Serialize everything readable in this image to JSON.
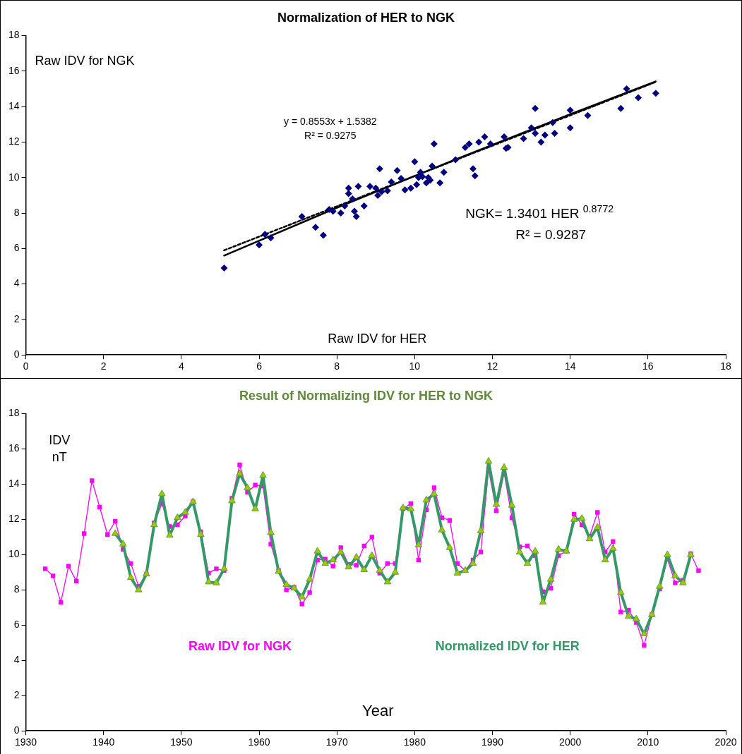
{
  "chart_data": [
    {
      "type": "scatter",
      "title": "Normalization of HER to NGK",
      "xlabel": "Raw IDV for HER",
      "ylabel": "Raw IDV for NGK",
      "xlim": [
        0,
        18
      ],
      "ylim": [
        0,
        18
      ],
      "xticks": [
        0,
        2,
        4,
        6,
        8,
        10,
        12,
        14,
        16,
        18
      ],
      "yticks": [
        0,
        2,
        4,
        6,
        8,
        10,
        12,
        14,
        16,
        18
      ],
      "grid": false,
      "legend": false,
      "marker": "diamond",
      "annotations": [
        "y = 0.8553x + 1.5382",
        "R² = 0.9275",
        "NGK= 1.3401 HER $^{0.8772}$",
        "R² = 0.9287"
      ],
      "series": [
        {
          "color": "#000080",
          "x": [
            5.1,
            6.0,
            6.15,
            6.3,
            7.1,
            7.45,
            7.65,
            7.8,
            7.9,
            8.1,
            8.2,
            8.3,
            8.3,
            8.4,
            8.45,
            8.5,
            8.55,
            8.7,
            8.85,
            9.0,
            9.05,
            9.1,
            9.15,
            9.3,
            9.4,
            9.55,
            9.65,
            9.75,
            9.9,
            10.0,
            10.05,
            10.1,
            10.15,
            10.2,
            10.3,
            10.35,
            10.4,
            10.5,
            10.45,
            10.65,
            10.75,
            11.05,
            11.3,
            11.4,
            11.5,
            11.55,
            11.65,
            11.8,
            11.95,
            12.3,
            12.35,
            12.4,
            12.8,
            13.0,
            13.1,
            13.1,
            13.25,
            13.35,
            13.55,
            13.6,
            14.0,
            14.0,
            14.45,
            15.3,
            15.45,
            15.75,
            16.2
          ],
          "values": [
            4.9,
            6.2,
            6.8,
            6.6,
            7.8,
            7.2,
            6.75,
            8.2,
            8.1,
            8.0,
            8.4,
            9.4,
            9.1,
            8.8,
            8.1,
            7.8,
            9.5,
            8.4,
            9.5,
            9.4,
            9.0,
            10.5,
            9.2,
            9.25,
            9.75,
            10.4,
            9.95,
            9.3,
            9.4,
            10.9,
            9.6,
            10.0,
            10.3,
            10.05,
            9.7,
            10.0,
            9.85,
            11.9,
            10.65,
            9.7,
            10.3,
            11.0,
            11.7,
            11.9,
            10.5,
            10.1,
            12.0,
            12.3,
            11.9,
            12.3,
            11.65,
            11.7,
            12.2,
            12.8,
            13.9,
            12.5,
            12.0,
            12.4,
            13.1,
            12.5,
            13.8,
            12.8,
            13.5,
            13.9,
            15.0,
            14.5,
            14.75
          ]
        },
        {
          "type": "line",
          "color": "#000000",
          "marker": "none",
          "line_style": "dashed",
          "x": [
            5.1,
            16.2
          ],
          "values": [
            5.9,
            15.39
          ]
        },
        {
          "type": "line",
          "color": "#000000",
          "marker": "none",
          "line_style": "solid",
          "x": [
            5.1,
            8,
            11,
            14,
            16.2
          ],
          "values": [
            5.6,
            8.3,
            10.98,
            13.57,
            15.42
          ]
        }
      ]
    },
    {
      "type": "line",
      "title": "Result of Normalizing IDV for HER to NGK",
      "xlabel": "Year",
      "ylabel": "IDV\nnT",
      "xlim": [
        1930,
        2020
      ],
      "ylim": [
        0,
        18
      ],
      "xticks": [
        1930,
        1940,
        1950,
        1960,
        1970,
        1980,
        1990,
        2000,
        2010,
        2020
      ],
      "yticks": [
        0,
        2,
        4,
        6,
        8,
        10,
        12,
        14,
        16,
        18
      ],
      "grid": false,
      "legend": false,
      "series": [
        {
          "name": "Raw IDV for NGK",
          "color": "#ff00ff",
          "marker": "square",
          "x": [
            1932.5,
            1933.5,
            1934.5,
            1935.5,
            1936.5,
            1937.5,
            1938.5,
            1939.5,
            1940.5,
            1941.5,
            1942.5,
            1943.5,
            1944.5,
            1945.5,
            1946.5,
            1947.5,
            1948.5,
            1949.5,
            1950.5,
            1951.5,
            1952.5,
            1953.5,
            1954.5,
            1955.5,
            1956.5,
            1957.5,
            1958.5,
            1959.5,
            1960.5,
            1961.5,
            1962.5,
            1963.5,
            1964.5,
            1965.5,
            1966.5,
            1967.5,
            1968.5,
            1969.5,
            1970.5,
            1971.5,
            1972.5,
            1973.5,
            1974.5,
            1975.5,
            1976.5,
            1977.5,
            1978.5,
            1979.5,
            1980.5,
            1981.5,
            1982.5,
            1983.5,
            1984.5,
            1985.5,
            1986.5,
            1987.5,
            1988.5,
            1989.5,
            1990.5,
            1991.5,
            1992.5,
            1993.5,
            1994.5,
            1995.5,
            1996.5,
            1997.5,
            1998.5,
            1999.5,
            2000.5,
            2001.5,
            2002.5,
            2003.5,
            2004.5,
            2005.5,
            2006.5,
            2007.5,
            2008.5,
            2009.5,
            2010.5,
            2011.5,
            2012.5,
            2013.5,
            2014.5,
            2015.5,
            2016.5
          ],
          "values": [
            9.2,
            8.8,
            7.3,
            9.35,
            8.5,
            11.2,
            14.2,
            12.7,
            11.15,
            11.9,
            10.3,
            9.5,
            8.2,
            8.9,
            11.8,
            12.9,
            11.6,
            11.7,
            12.2,
            13.0,
            11.3,
            8.95,
            9.2,
            9.1,
            13.2,
            15.1,
            13.55,
            13.95,
            13.9,
            10.6,
            9.1,
            8.0,
            8.15,
            7.2,
            7.85,
            9.7,
            9.75,
            9.35,
            10.4,
            9.45,
            9.4,
            10.5,
            11.0,
            8.95,
            9.5,
            9.5,
            12.6,
            12.9,
            9.7,
            12.55,
            13.8,
            12.1,
            11.95,
            9.5,
            9.1,
            9.7,
            10.15,
            14.85,
            12.5,
            14.65,
            12.1,
            10.45,
            10.5,
            9.95,
            7.9,
            8.1,
            9.95,
            10.2,
            12.3,
            11.7,
            11.05,
            12.4,
            10.15,
            10.75,
            6.75,
            6.85,
            6.15,
            4.85,
            6.6,
            8.05,
            9.75,
            8.4,
            8.55,
            10.05,
            9.1
          ]
        },
        {
          "name": "Normalized IDV for HER",
          "color": "#339966",
          "marker": "triangle",
          "x": [
            1941.5,
            1942.5,
            1943.5,
            1944.5,
            1945.5,
            1946.5,
            1947.5,
            1948.5,
            1949.5,
            1950.5,
            1951.5,
            1952.5,
            1953.5,
            1954.5,
            1955.5,
            1956.5,
            1957.5,
            1958.5,
            1959.5,
            1960.5,
            1961.5,
            1962.5,
            1963.5,
            1964.5,
            1965.5,
            1966.5,
            1967.5,
            1968.5,
            1969.5,
            1970.5,
            1971.5,
            1972.5,
            1973.5,
            1974.5,
            1975.5,
            1976.5,
            1977.5,
            1978.5,
            1979.5,
            1980.5,
            1981.5,
            1982.5,
            1983.5,
            1984.5,
            1985.5,
            1986.5,
            1987.5,
            1988.5,
            1989.5,
            1990.5,
            1991.5,
            1992.5,
            1993.5,
            1994.5,
            1995.5,
            1996.5,
            1997.5,
            1998.5,
            1999.5,
            2000.5,
            2001.5,
            2002.5,
            2003.5,
            2004.5,
            2005.5,
            2006.5,
            2007.5,
            2008.5,
            2009.5,
            2010.5,
            2011.5,
            2012.5,
            2013.5,
            2014.5,
            2015.5
          ],
          "values": [
            11.2,
            10.6,
            8.7,
            8.0,
            8.9,
            11.7,
            13.45,
            11.1,
            12.1,
            12.4,
            13.0,
            11.15,
            8.45,
            8.4,
            9.2,
            13.05,
            14.6,
            13.8,
            12.6,
            14.5,
            11.25,
            9.05,
            8.3,
            8.1,
            7.6,
            8.6,
            10.2,
            9.5,
            9.7,
            10.15,
            9.3,
            9.85,
            9.15,
            9.95,
            9.1,
            8.45,
            9.0,
            12.65,
            12.6,
            10.55,
            13.1,
            13.45,
            11.4,
            10.4,
            8.95,
            9.1,
            9.5,
            11.35,
            15.3,
            12.85,
            14.95,
            12.8,
            10.15,
            9.5,
            10.2,
            7.3,
            8.6,
            10.3,
            10.2,
            12.0,
            12.05,
            10.9,
            11.55,
            9.7,
            10.35,
            7.85,
            6.5,
            6.35,
            5.5,
            6.6,
            8.2,
            10.0,
            8.8,
            8.4,
            10.0
          ]
        }
      ]
    }
  ]
}
